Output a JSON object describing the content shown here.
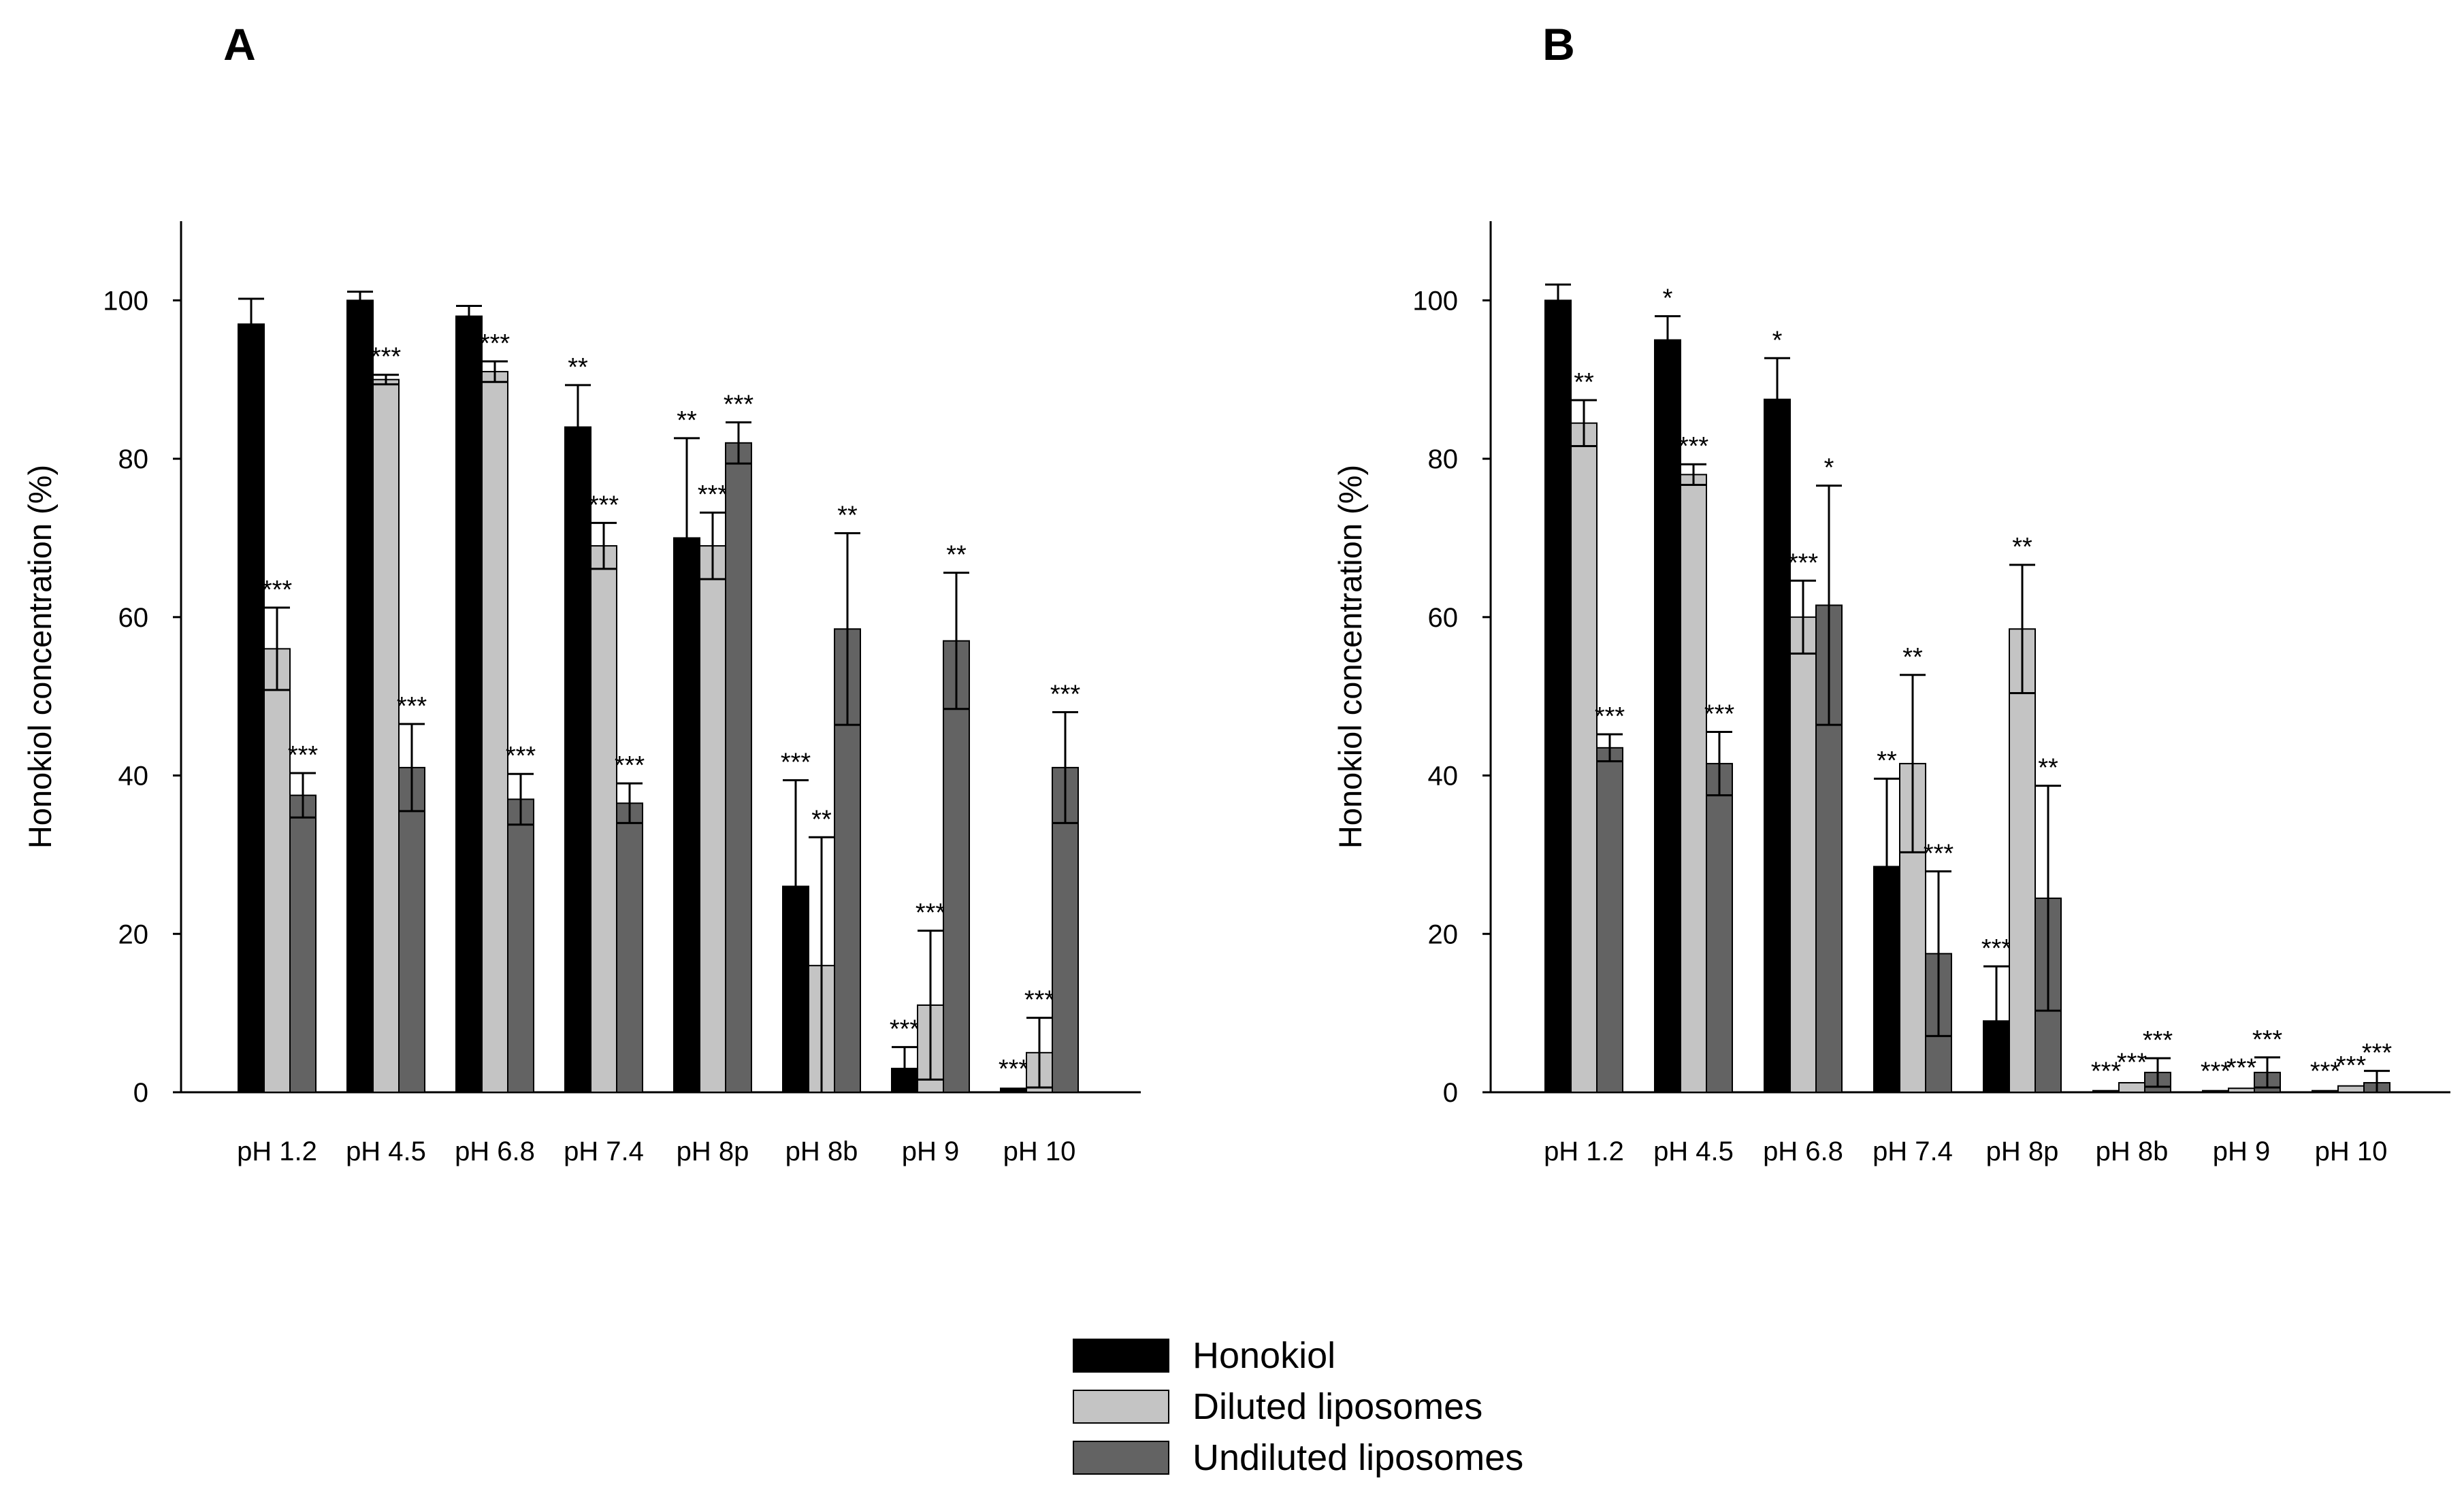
{
  "chart_data": [
    {
      "type": "bar",
      "panel_label": "A",
      "title": "",
      "xlabel": "",
      "ylabel": "Honokiol concentration (%)",
      "ylim": [
        0,
        110
      ],
      "yticks": [
        0,
        20,
        40,
        60,
        80,
        100
      ],
      "categories": [
        "pH 1.2",
        "pH 4.5",
        "pH 6.8",
        "pH 7.4",
        "pH 8p",
        "pH 8b",
        "pH 9",
        "pH 10"
      ],
      "series": [
        {
          "name": "Honokiol",
          "values": [
            97,
            100,
            98,
            84,
            70,
            26,
            3,
            0.5
          ],
          "errors": [
            3.2,
            1.1,
            1.3,
            5.3,
            12.6,
            13.4,
            2.7,
            0.2
          ],
          "significance": [
            "",
            "",
            "",
            "**",
            "**",
            "***",
            "***",
            "***"
          ]
        },
        {
          "name": "Diluted liposomes",
          "values": [
            56,
            90,
            91,
            69,
            69,
            16,
            11,
            5
          ],
          "errors": [
            5.2,
            0.6,
            1.3,
            2.9,
            4.2,
            16.2,
            9.4,
            4.4
          ],
          "significance": [
            "***",
            "***",
            "***",
            "***",
            "***",
            "**",
            "***",
            "***"
          ]
        },
        {
          "name": "Undiluted liposomes",
          "values": [
            37.5,
            41,
            37,
            36.5,
            82,
            58.5,
            57,
            41
          ],
          "errors": [
            2.8,
            5.5,
            3.2,
            2.5,
            2.6,
            12.1,
            8.6,
            7.0
          ],
          "significance": [
            "***",
            "***",
            "***",
            "***",
            "***",
            "**",
            "**",
            "***"
          ]
        }
      ]
    },
    {
      "type": "bar",
      "panel_label": "B",
      "title": "",
      "xlabel": "",
      "ylabel": "Honokiol concentration (%)",
      "ylim": [
        0,
        110
      ],
      "yticks": [
        0,
        20,
        40,
        60,
        80,
        100
      ],
      "categories": [
        "pH 1.2",
        "pH 4.5",
        "pH 6.8",
        "pH 7.4",
        "pH 8p",
        "pH 8b",
        "pH 9",
        "pH 10"
      ],
      "series": [
        {
          "name": "Honokiol",
          "values": [
            100,
            95,
            87.5,
            28.5,
            9,
            0.2,
            0.2,
            0.2
          ],
          "errors": [
            2,
            3,
            5.2,
            11.1,
            6.9,
            0.2,
            0.2,
            0.2
          ],
          "significance": [
            "",
            "*",
            "*",
            "**",
            "***",
            "***",
            "***",
            "***"
          ]
        },
        {
          "name": "Diluted liposomes",
          "values": [
            84.5,
            78,
            60,
            41.5,
            58.5,
            1.2,
            0.5,
            0.8
          ],
          "errors": [
            2.9,
            1.3,
            4.6,
            11.2,
            8.1,
            0.3,
            0.3,
            0.3
          ],
          "significance": [
            "**",
            "***",
            "***",
            "**",
            "**",
            "***",
            "***",
            "***"
          ]
        },
        {
          "name": "Undiluted liposomes",
          "values": [
            43.5,
            41.5,
            61.5,
            17.5,
            24.5,
            2.5,
            2.5,
            1.2
          ],
          "errors": [
            1.7,
            4,
            15.1,
            10.4,
            14.2,
            1.8,
            1.9,
            1.5
          ],
          "significance": [
            "***",
            "***",
            "*",
            "***",
            "**",
            "***",
            "***",
            "***"
          ]
        }
      ]
    }
  ],
  "legend": {
    "placement": "bottom-center",
    "items": [
      {
        "label": "Honokiol",
        "color": "#000000"
      },
      {
        "label": "Diluted liposomes",
        "color": "#c4c4c4"
      },
      {
        "label": "Undiluted liposomes",
        "color": "#636363"
      }
    ]
  },
  "colors": {
    "honokiol": "#000000",
    "diluted": "#c4c4c4",
    "undiluted": "#636363",
    "axis": "#000000"
  }
}
